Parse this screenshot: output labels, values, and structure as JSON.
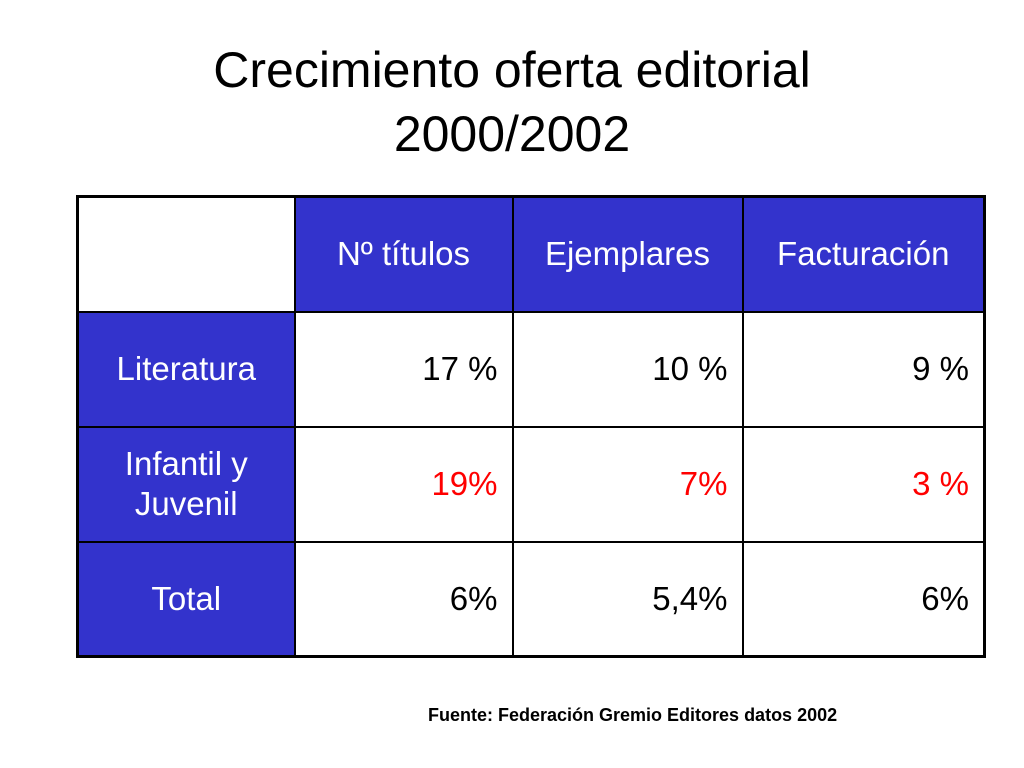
{
  "slide": {
    "title_line1": "Crecimiento oferta editorial",
    "title_line2": "2000/2002",
    "source": "Fuente: Federación Gremio Editores datos 2002"
  },
  "table": {
    "headers": [
      "Nº títulos",
      "Ejemplares",
      "Facturación"
    ],
    "rows": [
      {
        "label": "Literatura",
        "values": [
          "17 %",
          "10 %",
          "9 %"
        ],
        "value_color": "#000000"
      },
      {
        "label": "Infantil y Juvenil",
        "values": [
          "19%",
          "7%",
          "3 %"
        ],
        "value_color": "#ff0000"
      },
      {
        "label": "Total",
        "values": [
          "6%",
          "5,4%",
          "6%"
        ],
        "value_color": "#000000"
      }
    ]
  },
  "colors": {
    "header_bg": "#3333cc",
    "header_text": "#ffffff",
    "highlight_text": "#ff0000"
  }
}
